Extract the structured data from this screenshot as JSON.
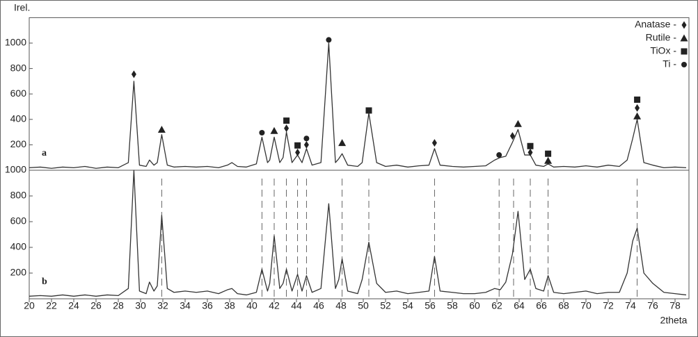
{
  "chart_data": [
    {
      "type": "line",
      "ylabel": "Irel.",
      "panel_label": "a",
      "xlim": [
        20,
        79
      ],
      "ylim": [
        0,
        1200
      ],
      "yticks": [
        200,
        400,
        600,
        800,
        1000
      ],
      "x": [
        20,
        21,
        22,
        23,
        24,
        25,
        26,
        27,
        28,
        28.9,
        29.4,
        29.9,
        30.5,
        30.8,
        31.2,
        31.5,
        31.9,
        32.4,
        33,
        34,
        35,
        36,
        37,
        37.8,
        38.2,
        38.7,
        39.5,
        40.4,
        40.9,
        41.4,
        41.6,
        42.0,
        42.5,
        42.8,
        43.1,
        43.6,
        44.1,
        44.5,
        44.9,
        45.4,
        46.2,
        46.9,
        47.5,
        47.8,
        48.1,
        48.6,
        49.5,
        49.9,
        50.5,
        51.2,
        52,
        53,
        54,
        55,
        55.9,
        56.4,
        56.9,
        58,
        59,
        60,
        61,
        61.8,
        62.3,
        62.8,
        63.4,
        63.9,
        64.5,
        65.0,
        65.5,
        66.2,
        66.6,
        67.1,
        68,
        69,
        70,
        71,
        72,
        73,
        73.7,
        74.2,
        74.6,
        75.2,
        76,
        77,
        78,
        79
      ],
      "series": [
        {
          "color": "#333333",
          "values": [
            20,
            25,
            15,
            25,
            20,
            30,
            15,
            25,
            20,
            60,
            700,
            40,
            30,
            80,
            40,
            60,
            280,
            40,
            25,
            30,
            25,
            30,
            20,
            40,
            60,
            30,
            25,
            50,
            260,
            60,
            80,
            260,
            60,
            100,
            300,
            60,
            120,
            60,
            170,
            40,
            60,
            1000,
            60,
            90,
            130,
            40,
            30,
            60,
            450,
            60,
            30,
            40,
            25,
            35,
            40,
            170,
            40,
            30,
            25,
            30,
            35,
            80,
            100,
            110,
            220,
            320,
            120,
            120,
            40,
            30,
            50,
            25,
            30,
            25,
            35,
            25,
            40,
            30,
            80,
            250,
            400,
            60,
            40,
            20,
            25,
            20
          ]
        }
      ],
      "phases": [
        {
          "name": "Anatase -",
          "marker": "diamond",
          "peaks": [
            [
              29.4,
              755
            ],
            [
              43.1,
              330
            ],
            [
              44.1,
              140
            ],
            [
              44.9,
              200
            ],
            [
              56.4,
              215
            ],
            [
              63.4,
              270
            ],
            [
              65.0,
              140
            ],
            [
              74.6,
              490
            ]
          ]
        },
        {
          "name": "Rutile -",
          "marker": "triangle",
          "peaks": [
            [
              31.9,
              320
            ],
            [
              42.0,
              310
            ],
            [
              48.1,
              215
            ],
            [
              63.9,
              365
            ],
            [
              66.6,
              75
            ],
            [
              74.6,
              425
            ]
          ]
        },
        {
          "name": "TiOx -",
          "marker": "square",
          "peaks": [
            [
              43.1,
              390
            ],
            [
              44.1,
              195
            ],
            [
              50.5,
              470
            ],
            [
              65.0,
              190
            ],
            [
              66.6,
              130
            ],
            [
              74.6,
              555
            ]
          ]
        },
        {
          "name": "Ti -",
          "marker": "circle",
          "peaks": [
            [
              40.9,
              295
            ],
            [
              44.9,
              250
            ],
            [
              46.9,
              1025
            ],
            [
              62.2,
              120
            ]
          ]
        }
      ]
    },
    {
      "type": "line",
      "xlabel": "2theta",
      "panel_label": "b",
      "xlim": [
        20,
        79
      ],
      "ylim": [
        0,
        1000
      ],
      "yticks": [
        200,
        400,
        600,
        800,
        1000
      ],
      "xticks": [
        20,
        22,
        24,
        26,
        28,
        30,
        32,
        34,
        36,
        38,
        40,
        42,
        44,
        46,
        48,
        50,
        52,
        54,
        56,
        58,
        60,
        62,
        64,
        66,
        68,
        70,
        72,
        74,
        76,
        78
      ],
      "x": [
        20,
        21,
        22,
        23,
        24,
        25,
        26,
        27,
        28,
        28.9,
        29.4,
        29.9,
        30.5,
        30.8,
        31.2,
        31.5,
        31.9,
        32.4,
        33,
        34,
        35,
        36,
        37,
        37.8,
        38.2,
        38.7,
        39.5,
        40.4,
        40.9,
        41.4,
        41.6,
        42.0,
        42.5,
        42.8,
        43.1,
        43.6,
        44.1,
        44.5,
        44.9,
        45.4,
        46.2,
        46.9,
        47.5,
        47.8,
        48.1,
        48.6,
        49.5,
        49.9,
        50.5,
        51.2,
        52,
        53,
        54,
        55,
        55.9,
        56.4,
        56.9,
        58,
        59,
        60,
        61,
        61.8,
        62.3,
        62.8,
        63.4,
        63.9,
        64.5,
        65.0,
        65.5,
        66.2,
        66.6,
        67.1,
        68,
        69,
        70,
        71,
        72,
        73,
        73.7,
        74.2,
        74.6,
        75.2,
        76,
        77,
        78,
        79
      ],
      "series": [
        {
          "color": "#333333",
          "values": [
            20,
            25,
            20,
            30,
            20,
            30,
            20,
            30,
            25,
            80,
            1000,
            60,
            40,
            130,
            60,
            100,
            650,
            80,
            50,
            60,
            50,
            60,
            40,
            70,
            80,
            40,
            30,
            50,
            230,
            60,
            120,
            490,
            80,
            120,
            230,
            60,
            190,
            60,
            180,
            50,
            80,
            740,
            80,
            150,
            310,
            60,
            40,
            150,
            440,
            120,
            50,
            60,
            40,
            50,
            60,
            330,
            60,
            50,
            40,
            40,
            50,
            80,
            70,
            130,
            350,
            680,
            150,
            230,
            80,
            60,
            180,
            50,
            40,
            50,
            60,
            40,
            50,
            50,
            200,
            450,
            550,
            200,
            120,
            50,
            40,
            30
          ]
        }
      ],
      "reference_lines": [
        31.9,
        40.9,
        42.0,
        43.1,
        44.1,
        44.9,
        48.1,
        50.5,
        56.4,
        62.2,
        63.5,
        65.0,
        66.6,
        74.6
      ]
    }
  ]
}
